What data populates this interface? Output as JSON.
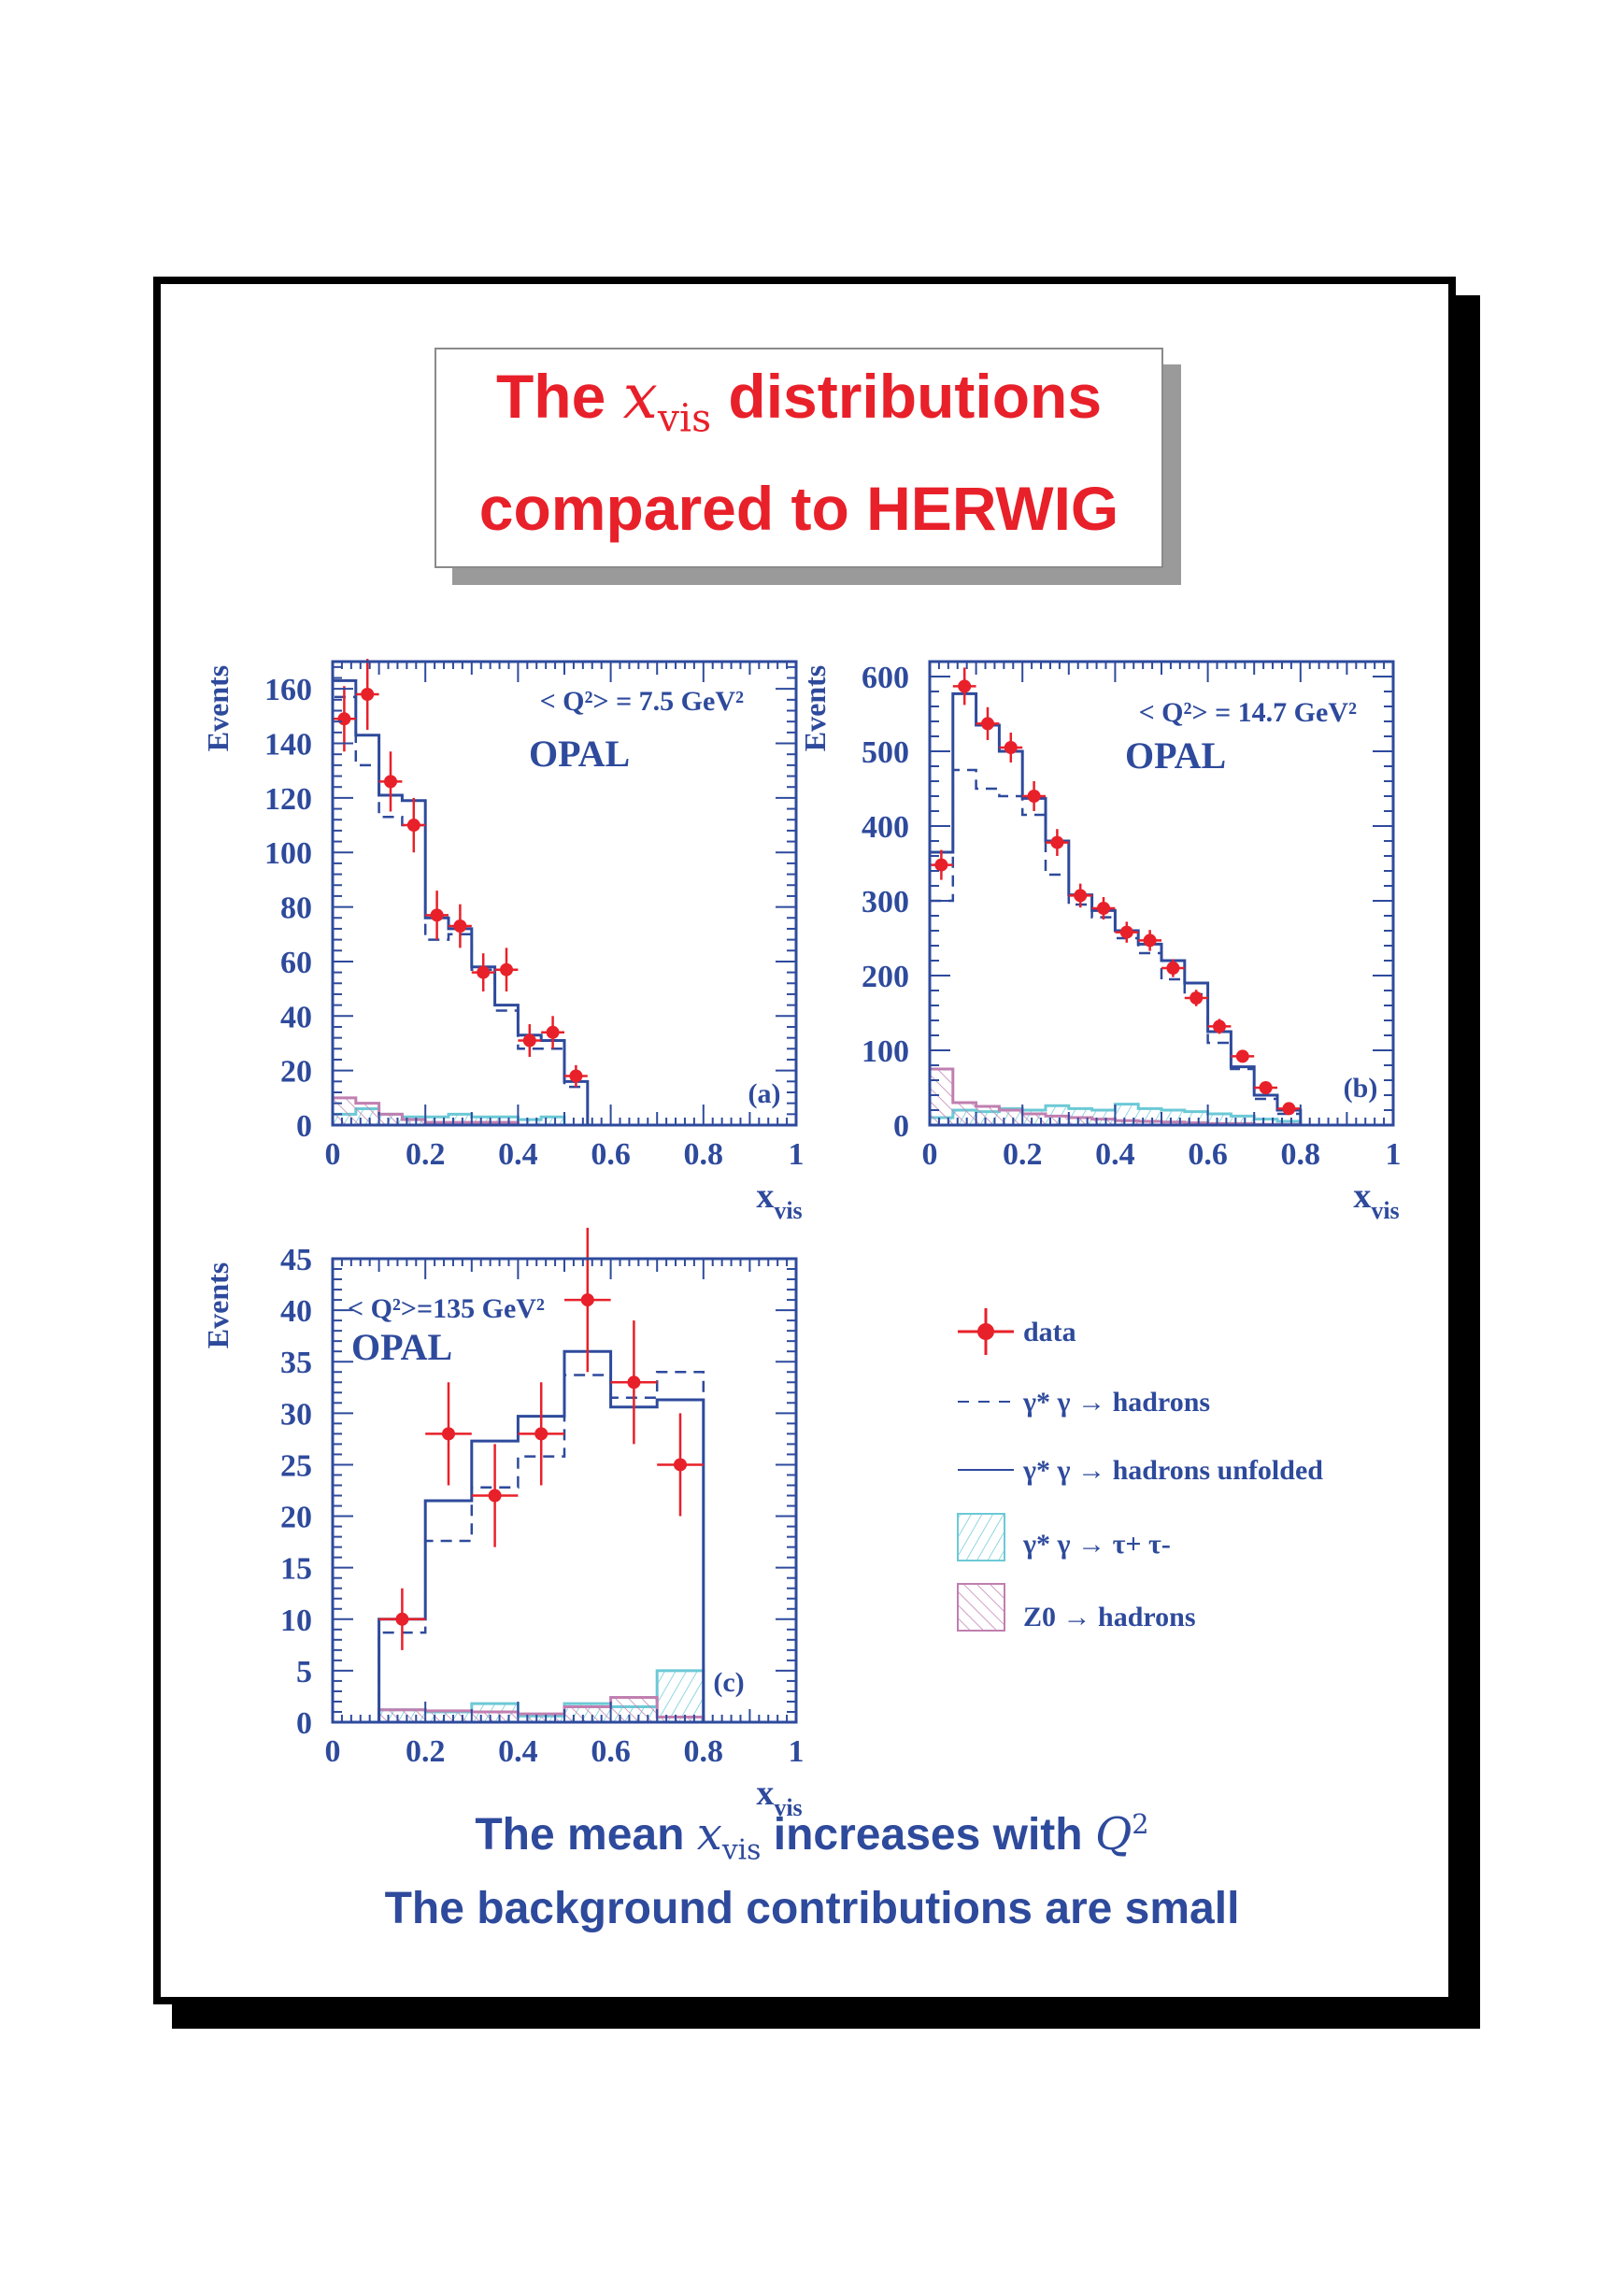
{
  "header": {
    "line1_pre": "The ",
    "line1_var": "x",
    "line1_sub": "vis",
    "line1_post": " distributions",
    "line2": "compared to HERWIG"
  },
  "footer": {
    "line1_pre": "The mean ",
    "line1_var": "x",
    "line1_sub": "vis",
    "line1_mid": " increases with ",
    "line1_var2": "Q",
    "line1_sup": "2",
    "line2": "The background contributions are small"
  },
  "colors": {
    "data": "#e8202a",
    "axes": "#2e4a9c",
    "tau": "#6cc9d6",
    "z0": "#c07fb0"
  },
  "legend": {
    "data": "data",
    "herwig": "γ* γ → hadrons",
    "unfolded": "γ* γ → hadrons unfolded",
    "tau": "γ* γ → τ+ τ-",
    "z0": "Z0 → hadrons"
  },
  "chart_data": [
    {
      "type": "histogram",
      "panel": "(a)",
      "q2_label": "< Q²> = 7.5 GeV²",
      "experiment": "OPAL",
      "ylabel": "Events",
      "xlabel": "x",
      "xlabel_sub": "vis",
      "xlim": [
        0,
        1
      ],
      "ylim": [
        0,
        170
      ],
      "x_ticks": [
        "0",
        "0.2",
        "0.4",
        "0.6",
        "0.8",
        "1"
      ],
      "y_ticks": [
        "0",
        "20",
        "40",
        "60",
        "80",
        "100",
        "120",
        "140",
        "160"
      ],
      "bin_edges": [
        0,
        0.05,
        0.1,
        0.15,
        0.2,
        0.25,
        0.3,
        0.35,
        0.4,
        0.45,
        0.5,
        0.55,
        0.6
      ],
      "data": {
        "x": [
          0.025,
          0.075,
          0.125,
          0.175,
          0.225,
          0.275,
          0.325,
          0.375,
          0.425,
          0.475,
          0.525
        ],
        "y": [
          149,
          158,
          126,
          110,
          77,
          73,
          56,
          57,
          31,
          34,
          18
        ],
        "err": [
          12,
          13,
          11,
          10,
          9,
          8,
          7,
          8,
          6,
          6,
          4
        ]
      },
      "unfolded": [
        163,
        143,
        121,
        119,
        76,
        72,
        58,
        44,
        33,
        31,
        16,
        0
      ],
      "herwig": [
        157,
        132,
        113,
        110,
        68,
        70,
        57,
        42,
        28,
        28,
        14,
        0
      ],
      "tau_bg": [
        4,
        6,
        4,
        3,
        3,
        4,
        3,
        3,
        2,
        3,
        0,
        0
      ],
      "z0_bg": [
        10,
        8,
        4,
        2,
        1,
        1,
        1,
        1,
        0,
        0,
        0,
        0
      ]
    },
    {
      "type": "histogram",
      "panel": "(b)",
      "q2_label": "< Q²> = 14.7 GeV²",
      "experiment": "OPAL",
      "ylabel": "Events",
      "xlabel": "x",
      "xlabel_sub": "vis",
      "xlim": [
        0,
        1
      ],
      "ylim": [
        0,
        620
      ],
      "x_ticks": [
        "0",
        "0.2",
        "0.4",
        "0.6",
        "0.8",
        "1"
      ],
      "y_ticks": [
        "0",
        "100",
        "200",
        "300",
        "400",
        "500",
        "600"
      ],
      "bin_edges": [
        0,
        0.05,
        0.1,
        0.15,
        0.2,
        0.25,
        0.3,
        0.35,
        0.4,
        0.45,
        0.5,
        0.55,
        0.6,
        0.65,
        0.7,
        0.75,
        0.8,
        0.85
      ],
      "data": {
        "x": [
          0.025,
          0.075,
          0.125,
          0.175,
          0.225,
          0.275,
          0.325,
          0.375,
          0.425,
          0.475,
          0.525,
          0.575,
          0.625,
          0.675,
          0.725,
          0.775
        ],
        "y": [
          348,
          587,
          537,
          505,
          440,
          378,
          307,
          290,
          258,
          247,
          210,
          170,
          132,
          92,
          50,
          22
        ],
        "err": [
          20,
          25,
          22,
          20,
          20,
          18,
          16,
          15,
          14,
          14,
          12,
          11,
          10,
          8,
          6,
          4
        ]
      },
      "unfolded": [
        365,
        577,
        535,
        500,
        437,
        380,
        308,
        287,
        260,
        242,
        220,
        190,
        125,
        78,
        40,
        20,
        0
      ],
      "herwig": [
        300,
        475,
        450,
        440,
        415,
        335,
        295,
        278,
        250,
        230,
        195,
        175,
        110,
        75,
        35,
        15,
        0
      ],
      "tau_bg": [
        10,
        20,
        18,
        22,
        20,
        26,
        22,
        20,
        28,
        22,
        20,
        18,
        15,
        12,
        8,
        5,
        0
      ],
      "z0_bg": [
        75,
        30,
        25,
        20,
        15,
        12,
        10,
        8,
        6,
        5,
        4,
        3,
        2,
        2,
        1,
        1,
        0
      ]
    },
    {
      "type": "histogram",
      "panel": "(c)",
      "q2_label": "< Q²>=135 GeV²",
      "experiment": "OPAL",
      "ylabel": "Events",
      "xlabel": "x",
      "xlabel_sub": "vis",
      "xlim": [
        0,
        1
      ],
      "ylim": [
        0,
        45
      ],
      "x_ticks": [
        "0",
        "0.2",
        "0.4",
        "0.6",
        "0.8",
        "1"
      ],
      "y_ticks": [
        "0",
        "5",
        "10",
        "15",
        "20",
        "25",
        "30",
        "35",
        "40",
        "45"
      ],
      "bin_edges": [
        0.1,
        0.2,
        0.3,
        0.4,
        0.5,
        0.6,
        0.7,
        0.8
      ],
      "data": {
        "x": [
          0.15,
          0.25,
          0.35,
          0.45,
          0.55,
          0.65,
          0.75
        ],
        "y": [
          10,
          28,
          22,
          28,
          41,
          33,
          25
        ],
        "err": [
          3,
          5,
          5,
          5,
          7,
          6,
          5
        ],
        "xerr": 0.05
      },
      "unfolded": [
        10.0,
        21.5,
        27.3,
        29.7,
        36.0,
        30.6,
        31.3
      ],
      "herwig": [
        8.7,
        17.6,
        22.8,
        25.8,
        33.7,
        31.5,
        34.0
      ],
      "tau_bg": [
        1.2,
        1.0,
        1.8,
        0.6,
        1.8,
        1.5,
        5.0
      ],
      "z0_bg": [
        1.2,
        1.1,
        1.0,
        0.8,
        1.5,
        2.4,
        0.5
      ]
    }
  ]
}
